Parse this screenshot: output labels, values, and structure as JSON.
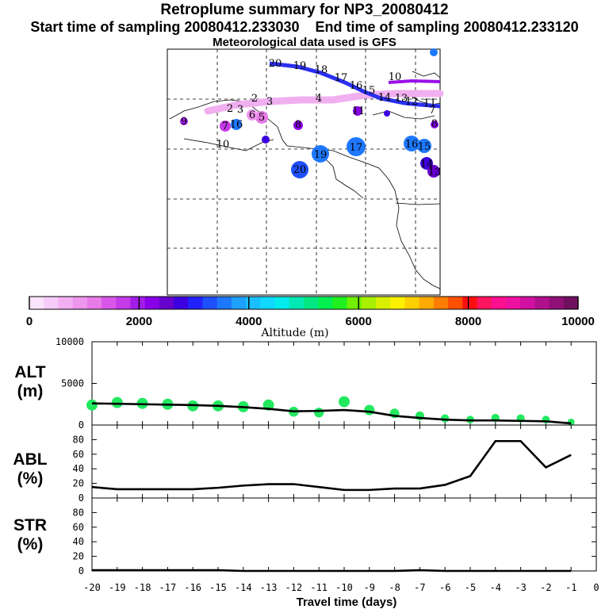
{
  "title": "Retroplume summary for NP3_20080412",
  "start_label": "Start time of sampling 20080412.233030",
  "end_label": "End time of sampling 20080412.233120",
  "met_label": "Meteorological data used is GFS",
  "colorbar": {
    "label": "Altitude (m)",
    "ticks": [
      "0",
      "2000",
      "4000",
      "6000",
      "8000",
      "10000"
    ],
    "colors": [
      "#fbe3fb",
      "#f7cbf7",
      "#f2b0f2",
      "#ee95ee",
      "#e87be8",
      "#d957e8",
      "#c43ae8",
      "#a21ee8",
      "#8800e8",
      "#6600cc",
      "#3c00e0",
      "#2222ff",
      "#1e50ff",
      "#1e78ff",
      "#1ea0ff",
      "#18c0ff",
      "#10d8ff",
      "#00ecec",
      "#00e8b4",
      "#00e882",
      "#00ee50",
      "#20f020",
      "#70f000",
      "#a8f000",
      "#d8f000",
      "#fff000",
      "#ffd000",
      "#ffaa00",
      "#ff7e00",
      "#ff5000",
      "#ff1010",
      "#ff1460",
      "#ff1090",
      "#ee10a0",
      "#d010a0",
      "#b0108c",
      "#901078",
      "#701060"
    ]
  },
  "map": {
    "labels": [
      "20",
      "19",
      "18",
      "17",
      "16",
      "15",
      "14",
      "13",
      "12",
      "11",
      "10",
      "9",
      "8",
      "7",
      "6",
      "5",
      "4",
      "3",
      "2",
      "1"
    ]
  },
  "panels": {
    "alt_label": "ALT\n(m)",
    "abl_label": "ABL\n(%)",
    "str_label": "STR\n(%)",
    "alt_label_a": "ALT",
    "alt_label_b": "(m)",
    "abl_label_a": "ABL",
    "abl_label_b": "(%)",
    "str_label_a": "STR",
    "str_label_b": "(%)",
    "xlabel": "Travel time (days)"
  },
  "chart_data": [
    {
      "type": "line",
      "title": "ALT (m)",
      "x": [
        -20,
        -19,
        -18,
        -17,
        -16,
        -15,
        -14,
        -13,
        -12,
        -11,
        -10,
        -9,
        -8,
        -7,
        -6,
        -5,
        -4,
        -3,
        -2,
        -1
      ],
      "values": [
        2600,
        2550,
        2500,
        2450,
        2400,
        2300,
        2150,
        1950,
        1650,
        1700,
        1800,
        1600,
        1100,
        850,
        650,
        550,
        550,
        500,
        450,
        200
      ],
      "dots": [
        2400,
        2700,
        2600,
        2500,
        2300,
        2300,
        2200,
        2400,
        1600,
        1500,
        2800,
        1800,
        1400,
        1100,
        800,
        650,
        850,
        800,
        650,
        350
      ],
      "xlim": [
        -20,
        0
      ],
      "ylim": [
        0,
        10000
      ],
      "yticks": [
        "0",
        "5000",
        "10000"
      ],
      "xticks": [
        "-20",
        "-19",
        "-18",
        "-17",
        "-16",
        "-15",
        "-14",
        "-13",
        "-12",
        "-11",
        "-10",
        "-9",
        "-8",
        "-7",
        "-6",
        "-5",
        "-4",
        "-3",
        "-2",
        "-1",
        "0"
      ]
    },
    {
      "type": "line",
      "title": "ABL (%)",
      "x": [
        -20,
        -19,
        -18,
        -17,
        -16,
        -15,
        -14,
        -13,
        -12,
        -11,
        -10,
        -9,
        -8,
        -7,
        -6,
        -5,
        -4,
        -3,
        -2,
        -1
      ],
      "values": [
        15,
        12,
        12,
        12,
        12,
        14,
        17,
        19,
        19,
        15,
        11,
        11,
        13,
        13,
        18,
        30,
        78,
        78,
        42,
        59
      ],
      "ylim": [
        0,
        100
      ],
      "yticks": [
        "0",
        "20",
        "40",
        "60",
        "80"
      ]
    },
    {
      "type": "line",
      "title": "STR (%)",
      "x": [
        -20,
        -19,
        -18,
        -17,
        -16,
        -15,
        -14,
        -13,
        -12,
        -11,
        -10,
        -9,
        -8,
        -7,
        -6,
        -5,
        -4,
        -3,
        -2,
        -1
      ],
      "values": [
        1,
        1,
        1,
        1,
        1,
        1,
        0,
        0,
        0,
        0,
        0,
        0,
        0,
        1,
        0,
        0,
        0,
        0,
        0,
        0
      ],
      "ylim": [
        0,
        100
      ],
      "yticks": [
        "0",
        "20",
        "40",
        "60",
        "80"
      ]
    }
  ]
}
